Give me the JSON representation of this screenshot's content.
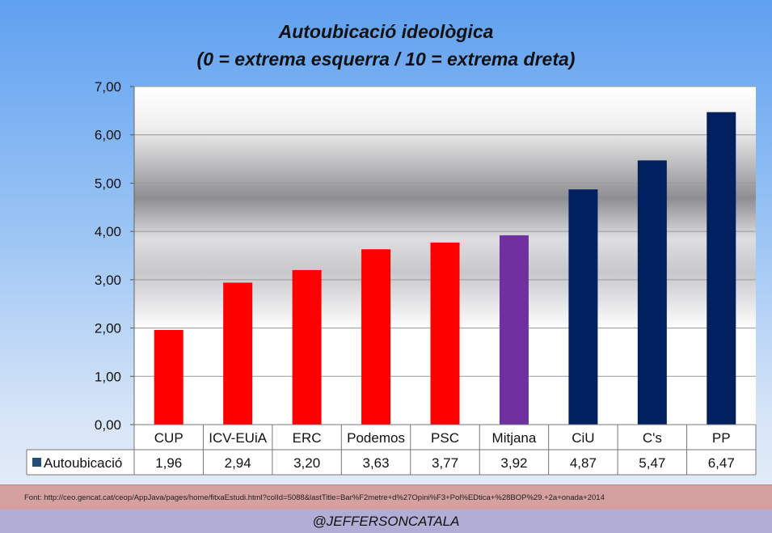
{
  "chart_data": {
    "type": "bar",
    "title_line1": "Autoubicació ideològica",
    "title_line2": "(0 = extrema esquerra / 10 = extrema dreta)",
    "categories": [
      "CUP",
      "ICV-EUiA",
      "ERC",
      "Podemos",
      "PSC",
      "Mitjana",
      "CiU",
      "C's",
      "PP"
    ],
    "series": [
      {
        "name": "Autoubicació",
        "values": [
          1.96,
          2.94,
          3.2,
          3.63,
          3.77,
          3.92,
          4.87,
          5.47,
          6.47
        ],
        "value_labels": [
          "1,96",
          "2,94",
          "3,20",
          "3,63",
          "3,77",
          "3,92",
          "4,87",
          "5,47",
          "6,47"
        ],
        "colors": [
          "#ff0000",
          "#ff0000",
          "#ff0000",
          "#ff0000",
          "#ff0000",
          "#7030a0",
          "#002060",
          "#002060",
          "#002060"
        ]
      }
    ],
    "ylim": [
      0,
      7
    ],
    "yticks": [
      0,
      1,
      2,
      3,
      4,
      5,
      6,
      7
    ],
    "ytick_labels": [
      "0,00",
      "1,00",
      "2,00",
      "3,00",
      "4,00",
      "5,00",
      "6,00",
      "7,00"
    ],
    "legend_color": "#1f4e79",
    "data_table": true
  },
  "footer": {
    "source": "Font: http://ceo.gencat.cat/ceop/AppJava/pages/home/fitxaEstudi.html?colId=5088&lastTitle=Bar%F2metre+d%27Opini%F3+Pol%EDtica+%28BOP%29.+2a+onada+2014",
    "credit": "@JEFFERSONCATALA"
  }
}
